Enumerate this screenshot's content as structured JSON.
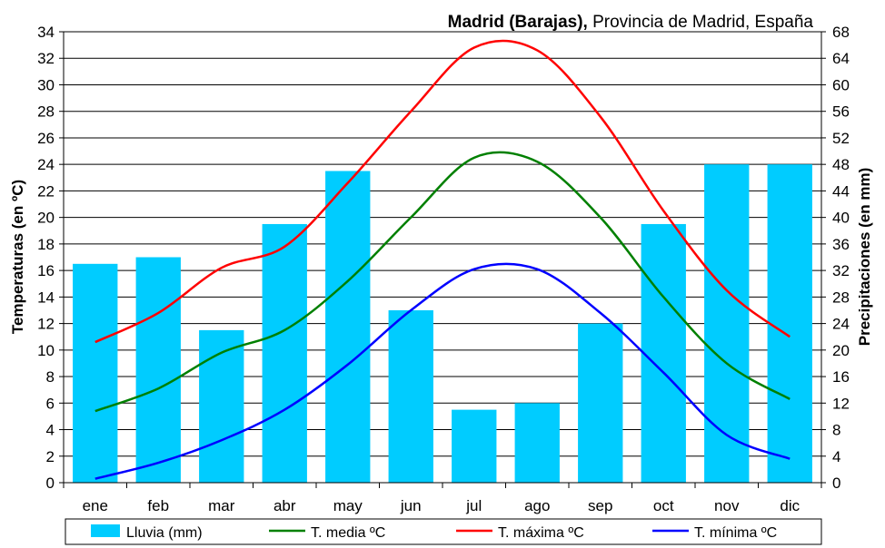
{
  "chart_data": {
    "type": "bar",
    "title": {
      "bold_part": "Madrid (Barajas),",
      "regular_part": " Provincia de Madrid, España"
    },
    "categories": [
      "ene",
      "feb",
      "mar",
      "abr",
      "may",
      "jun",
      "jul",
      "ago",
      "sep",
      "oct",
      "nov",
      "dic"
    ],
    "ylabel_left": "Temperaturas (en ºC)",
    "ylabel_right": "Precipitaciones (en mm)",
    "ylim_left": [
      0,
      34
    ],
    "ylim_right": [
      0,
      68
    ],
    "yticks_left": [
      "0",
      "2",
      "4",
      "6",
      "8",
      "10",
      "12",
      "14",
      "16",
      "18",
      "20",
      "22",
      "24",
      "26",
      "28",
      "30",
      "32",
      "34"
    ],
    "yticks_right": [
      "0",
      "4",
      "8",
      "12",
      "16",
      "20",
      "24",
      "28",
      "32",
      "36",
      "40",
      "44",
      "48",
      "52",
      "56",
      "60",
      "64",
      "68"
    ],
    "grid": true,
    "legend_position": "bottom",
    "bar_series": {
      "name": "Lluvia (mm)",
      "axis": "right",
      "color": "#00ccff",
      "values": [
        33,
        34,
        23,
        39,
        47,
        26,
        11,
        12,
        24,
        39,
        48,
        48
      ]
    },
    "series": [
      {
        "name": "T. media ºC",
        "axis": "left",
        "color": "#008000",
        "values": [
          5.4,
          7.1,
          9.8,
          11.5,
          15.2,
          20.0,
          24.5,
          24.2,
          20.0,
          14.0,
          9.0,
          6.3
        ]
      },
      {
        "name": "T. máxima ºC",
        "axis": "left",
        "color": "#ff0000",
        "values": [
          10.6,
          12.8,
          16.2,
          17.8,
          22.6,
          28.0,
          32.8,
          32.6,
          27.6,
          20.5,
          14.5,
          11.0
        ]
      },
      {
        "name": "T. mínima ºC",
        "axis": "left",
        "color": "#0000ff",
        "values": [
          0.3,
          1.5,
          3.2,
          5.5,
          8.9,
          13.0,
          16.1,
          16.1,
          12.8,
          8.3,
          3.6,
          1.8
        ]
      }
    ]
  }
}
